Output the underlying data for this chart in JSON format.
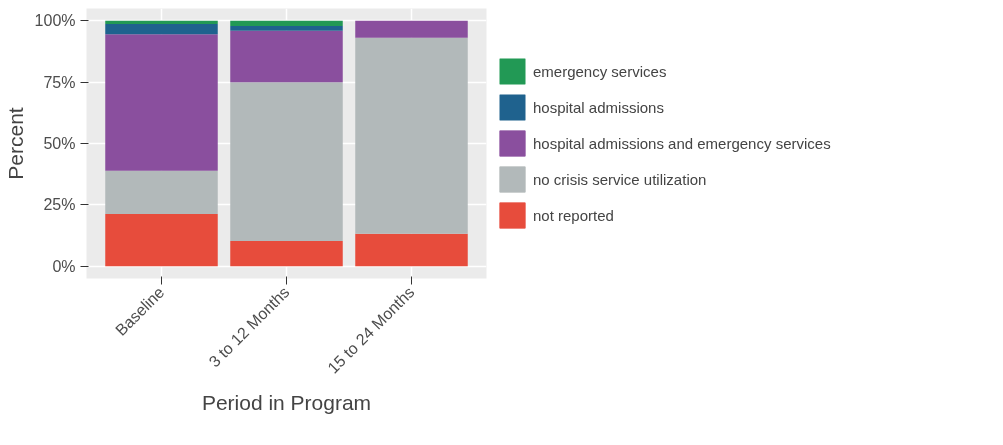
{
  "chart_data": {
    "type": "bar",
    "stacked": true,
    "xlabel": "Period in Program",
    "ylabel": "Percent",
    "categories": [
      "Baseline",
      "3 to 12 Months",
      "15 to 24 Months"
    ],
    "series": [
      {
        "name": "not reported",
        "color": "#e74c3c",
        "values": [
          21.3,
          10.3,
          13.2
        ]
      },
      {
        "name": "no crisis service utilization",
        "color": "#b2b9ba",
        "values": [
          17.6,
          64.7,
          79.9
        ]
      },
      {
        "name": "hospital admissions and emergency services",
        "color": "#8a4f9e",
        "values": [
          55.6,
          20.9,
          6.9
        ]
      },
      {
        "name": "hospital admissions",
        "color": "#1f628e",
        "values": [
          4.2,
          2.0,
          null
        ]
      },
      {
        "name": "emergency services",
        "color": "#229955",
        "values": [
          1.3,
          2.1,
          null
        ]
      }
    ],
    "ylim": [
      -5,
      105
    ],
    "yticks": [
      {
        "value": 0,
        "label": "0%"
      },
      {
        "value": 25,
        "label": "25%"
      },
      {
        "value": 50,
        "label": "50%"
      },
      {
        "value": 75,
        "label": "75%"
      },
      {
        "value": 100,
        "label": "100%"
      }
    ],
    "grid": true,
    "legend": "right"
  }
}
